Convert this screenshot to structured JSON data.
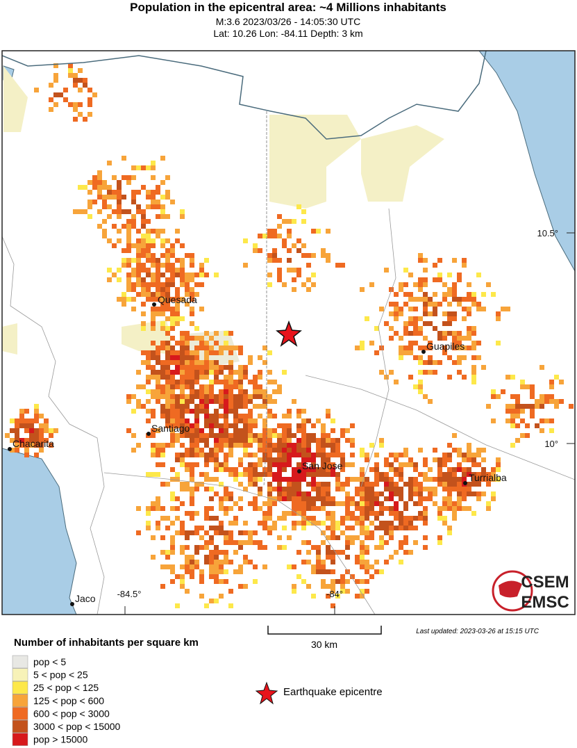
{
  "header": {
    "title": "Population in the epicentral area: ~4 Millions inhabitants",
    "lines": [
      "M:3.6 2023/03/26 - 14:05:30 UTC",
      "Lat: 10.26 Lon: -84.11 Depth: 3 km"
    ]
  },
  "map": {
    "cities": [
      "Quesada",
      "Guapiles",
      "Santiago",
      "Chacarita",
      "San Jose",
      "Turrialba",
      "Jaco"
    ],
    "lat_labels": [
      "10.5°",
      "10°"
    ],
    "lon_labels": [
      "-84.5°",
      "-84°"
    ],
    "scale_label": "30 km",
    "last_updated": "Last updated: 2023-03-26 at 15:15 UTC",
    "logo": [
      "CSEM",
      "EMSC"
    ]
  },
  "legend": {
    "title": "Number of inhabitants per square km",
    "items": [
      {
        "label": "pop < 5",
        "color": "#e8e8e4"
      },
      {
        "label": "5 < pop < 25",
        "color": "#f7f2b8"
      },
      {
        "label": "25 < pop < 125",
        "color": "#fde84a"
      },
      {
        "label": "125 < pop < 600",
        "color": "#f7a43a"
      },
      {
        "label": "600 < pop < 3000",
        "color": "#ef6a22"
      },
      {
        "label": "3000 < pop < 15000",
        "color": "#c3521c"
      },
      {
        "label": "pop > 15000",
        "color": "#d7191c"
      }
    ],
    "epicentre": "Earthquake epicentre"
  }
}
